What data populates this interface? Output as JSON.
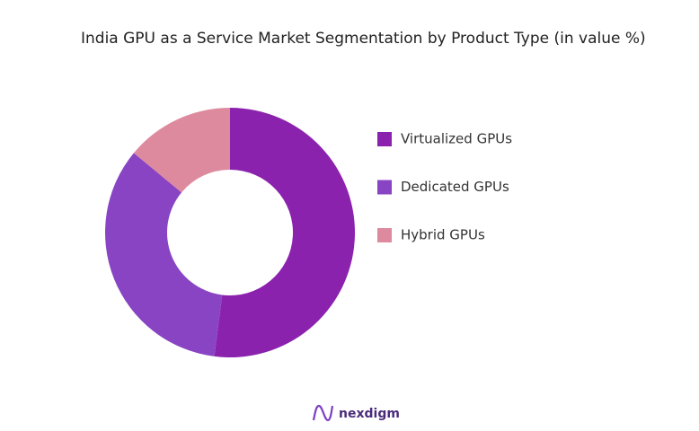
{
  "chart_data": {
    "type": "donut",
    "title": "India GPU as a Service Market Segmentation by Product Type (in value %)",
    "categories": [
      "Virtualized GPUs",
      "Dedicated GPUs",
      "Hybrid GPUs"
    ],
    "values": [
      52,
      34,
      14
    ],
    "colors": [
      "#8b22ae",
      "#8944c3",
      "#dd8a9f"
    ]
  },
  "brand": "nexdigm"
}
